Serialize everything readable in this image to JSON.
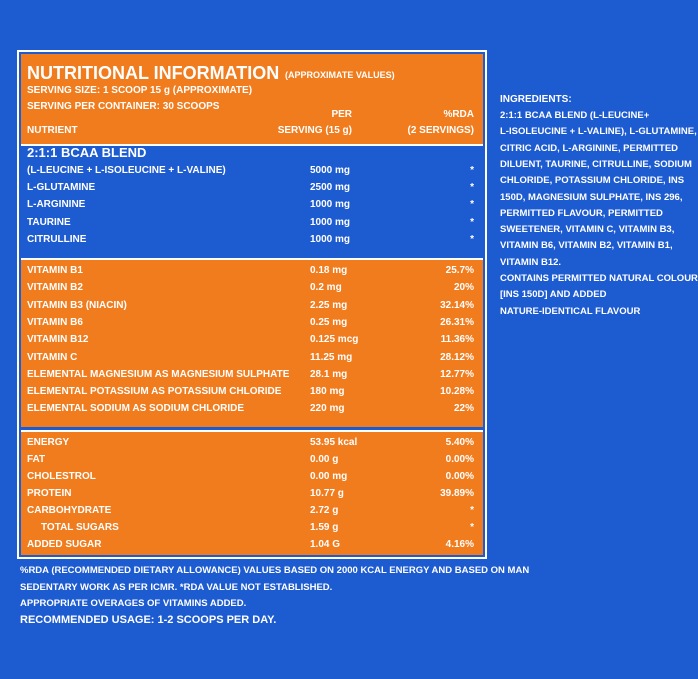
{
  "header": {
    "title": "NUTRITIONAL INFORMATION",
    "subtitle": "(APPROXIMATE VALUES)",
    "lines": [
      "SERVING SIZE: 1 SCOOP 15 g (APPROXIMATE)",
      "SERVING PER CONTAINER: 30 SCOOPS"
    ],
    "columns": {
      "nutrient": "NUTRIENT",
      "per": [
        "PER",
        "SERVING (15 g)"
      ],
      "rda": [
        "%RDA",
        "(2 SERVINGS)"
      ]
    }
  },
  "bcaa": {
    "heading": "2:1:1 BCAA BLEND",
    "rows": [
      [
        "(L-LEUCINE + L-ISOLEUCINE + L-VALINE)",
        "5000 mg",
        "*"
      ],
      [
        "L-GLUTAMINE",
        "2500 mg",
        "*"
      ],
      [
        "L-ARGININE",
        "1000 mg",
        "*"
      ],
      [
        "TAURINE",
        "1000 mg",
        "*"
      ],
      [
        "CITRULLINE",
        "1000 mg",
        "*"
      ]
    ]
  },
  "vitamins": {
    "rows": [
      [
        "VITAMIN B1",
        "0.18 mg",
        "25.7%"
      ],
      [
        "VITAMIN B2",
        "0.2 mg",
        "20%"
      ],
      [
        "VITAMIN B3 (NIACIN)",
        "2.25 mg",
        "32.14%"
      ],
      [
        "VITAMIN B6",
        "0.25 mg",
        "26.31%"
      ],
      [
        "VITAMIN B12",
        "0.125 mcg",
        "11.36%"
      ],
      [
        "VITAMIN C",
        "11.25 mg",
        "28.12%"
      ],
      [
        "ELEMENTAL MAGNESIUM AS MAGNESIUM SULPHATE",
        "28.1 mg",
        "12.77%"
      ],
      [
        "ELEMENTAL POTASSIUM AS POTASSIUM CHLORIDE",
        "180 mg",
        "10.28%"
      ],
      [
        "ELEMENTAL SODIUM AS SODIUM CHLORIDE",
        "220 mg",
        "22%"
      ]
    ]
  },
  "macros": {
    "rows": [
      [
        "ENERGY",
        "53.95 kcal",
        "5.40%"
      ],
      [
        "FAT",
        "0.00 g",
        "0.00%"
      ],
      [
        "CHOLESTROL",
        "0.00 mg",
        "0.00%"
      ],
      [
        "PROTEIN",
        "10.77 g",
        "39.89%"
      ],
      [
        "CARBOHYDRATE",
        "2.72 g",
        "*"
      ],
      [
        "TOTAL SUGARS",
        "1.59 g",
        "*"
      ],
      [
        "ADDED SUGAR",
        "1.04 G",
        "4.16%"
      ]
    ]
  },
  "footer": {
    "lines": [
      "%RDA (RECOMMENDED DIETARY ALLOWANCE) VALUES BASED ON 2000 KCAL ENERGY AND BASED ON MAN",
      "SEDENTARY WORK AS PER ICMR. *RDA VALUE NOT ESTABLISHED.",
      "APPROPRIATE OVERAGES OF VITAMINS ADDED."
    ],
    "usage": "RECOMMENDED USAGE: 1-2 SCOOPS PER DAY."
  },
  "ingredients": {
    "title": "INGREDIENTS:",
    "lines": [
      "2:1:1 BCAA BLEND (L-LEUCINE+",
      "L-ISOLEUCINE + L-VALINE), L-GLUTAMINE,",
      "CITRIC ACID, L-ARGININE, PERMITTED",
      "DILUENT, TAURINE, CITRULLINE, SODIUM",
      "CHLORIDE, POTASSIUM CHLORIDE, INS",
      "150D, MAGNESIUM SULPHATE, INS 296,",
      "PERMITTED FLAVOUR, PERMITTED",
      "SWEETENER, VITAMIN C, VITAMIN B3,",
      "VITAMIN B6, VITAMIN B2, VITAMIN B1,",
      "VITAMIN B12.",
      "CONTAINS PERMITTED NATURAL COLOUR",
      "[INS 150D] AND ADDED",
      "NATURE-IDENTICAL FLAVOUR"
    ]
  }
}
